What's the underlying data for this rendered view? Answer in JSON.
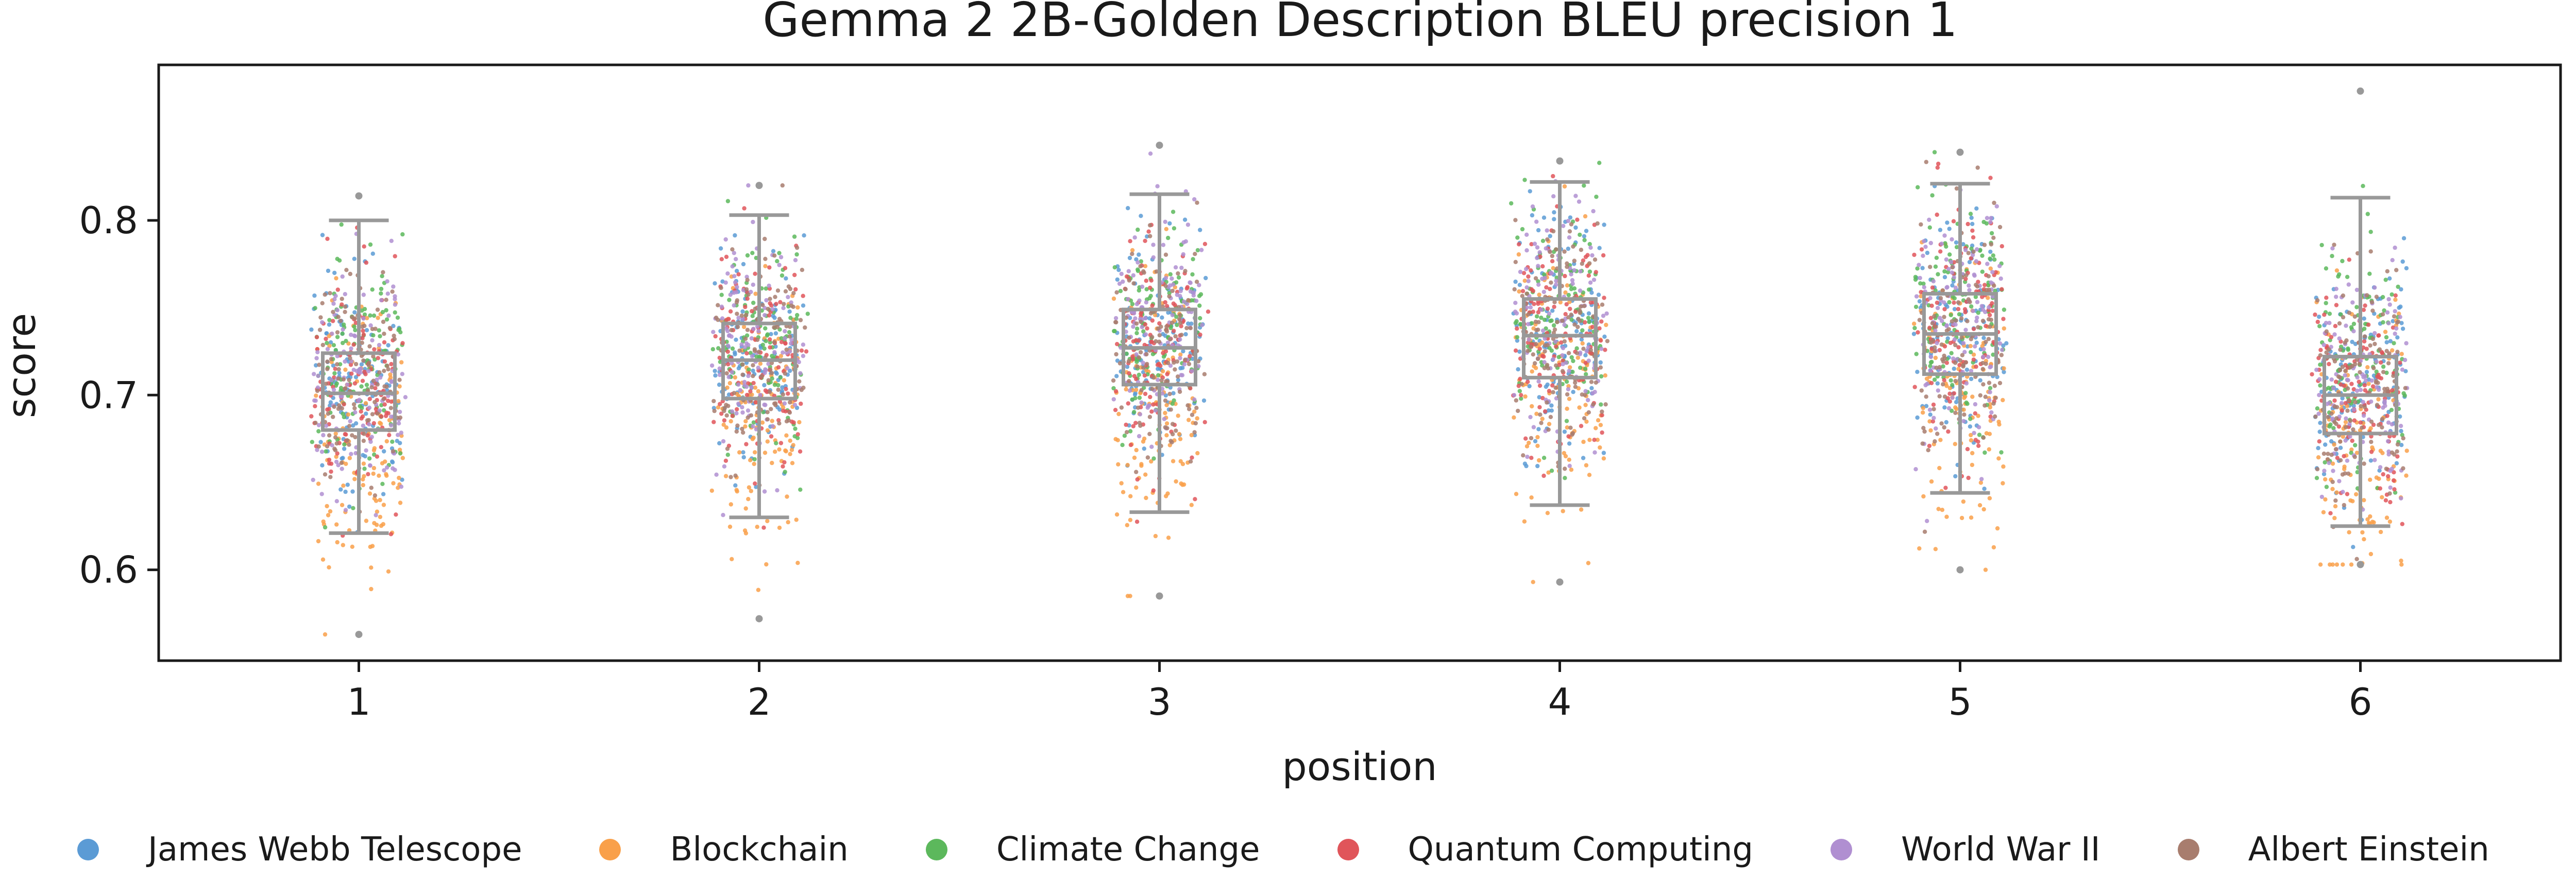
{
  "chart_data": {
    "type": "box+strip",
    "title": "Gemma 2 2B-Golden Description BLEU precision 1",
    "xlabel": "position",
    "ylabel": "score",
    "ylim": [
      0.548,
      0.889
    ],
    "categories": [
      "1",
      "2",
      "3",
      "4",
      "5",
      "6"
    ],
    "yticks": [
      "0.6",
      "0.7",
      "0.8"
    ],
    "boxes": [
      {
        "position": "1",
        "whisker_low": 0.621,
        "q1": 0.68,
        "median": 0.701,
        "q3": 0.724,
        "whisker_high": 0.8,
        "point_min": 0.563,
        "point_max": 0.814
      },
      {
        "position": "2",
        "whisker_low": 0.63,
        "q1": 0.698,
        "median": 0.72,
        "q3": 0.741,
        "whisker_high": 0.803,
        "point_min": 0.572,
        "point_max": 0.82
      },
      {
        "position": "3",
        "whisker_low": 0.633,
        "q1": 0.706,
        "median": 0.727,
        "q3": 0.749,
        "whisker_high": 0.815,
        "point_min": 0.585,
        "point_max": 0.843
      },
      {
        "position": "4",
        "whisker_low": 0.637,
        "q1": 0.71,
        "median": 0.734,
        "q3": 0.755,
        "whisker_high": 0.822,
        "point_min": 0.593,
        "point_max": 0.834
      },
      {
        "position": "5",
        "whisker_low": 0.644,
        "q1": 0.712,
        "median": 0.735,
        "q3": 0.758,
        "whisker_high": 0.821,
        "point_min": 0.6,
        "point_max": 0.839
      },
      {
        "position": "6",
        "whisker_low": 0.625,
        "q1": 0.678,
        "median": 0.7,
        "q3": 0.722,
        "whisker_high": 0.813,
        "point_min": 0.603,
        "point_max": 0.874
      }
    ],
    "series": [
      {
        "name": "James Webb Telescope",
        "color": "#5b9bd5",
        "offset": 0.004
      },
      {
        "name": "Blockchain",
        "color": "#f9a04a",
        "offset": -0.03
      },
      {
        "name": "Climate Change",
        "color": "#5cb85c",
        "offset": 0.012
      },
      {
        "name": "Quantum Computing",
        "color": "#e0555a",
        "offset": 0.0
      },
      {
        "name": "World War II",
        "color": "#b08fd1",
        "offset": 0.006
      },
      {
        "name": "Albert Einstein",
        "color": "#a87d6e",
        "offset": 0.002
      }
    ],
    "box_color": "#999999",
    "grid": false,
    "legend_position": "bottom"
  }
}
